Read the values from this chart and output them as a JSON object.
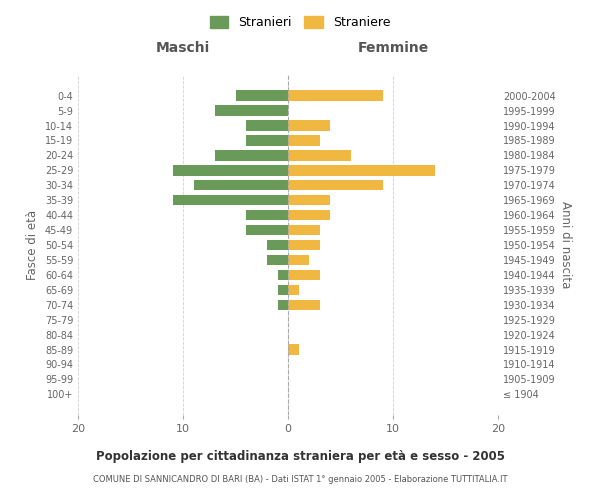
{
  "age_groups": [
    "100+",
    "95-99",
    "90-94",
    "85-89",
    "80-84",
    "75-79",
    "70-74",
    "65-69",
    "60-64",
    "55-59",
    "50-54",
    "45-49",
    "40-44",
    "35-39",
    "30-34",
    "25-29",
    "20-24",
    "15-19",
    "10-14",
    "5-9",
    "0-4"
  ],
  "birth_years": [
    "≤ 1904",
    "1905-1909",
    "1910-1914",
    "1915-1919",
    "1920-1924",
    "1925-1929",
    "1930-1934",
    "1935-1939",
    "1940-1944",
    "1945-1949",
    "1950-1954",
    "1955-1959",
    "1960-1964",
    "1965-1969",
    "1970-1974",
    "1975-1979",
    "1980-1984",
    "1985-1989",
    "1990-1994",
    "1995-1999",
    "2000-2004"
  ],
  "maschi": [
    0,
    0,
    0,
    0,
    0,
    0,
    1,
    1,
    1,
    2,
    2,
    4,
    4,
    11,
    9,
    11,
    7,
    4,
    4,
    7,
    5
  ],
  "femmine": [
    0,
    0,
    0,
    1,
    0,
    0,
    3,
    1,
    3,
    2,
    3,
    3,
    4,
    4,
    9,
    14,
    6,
    3,
    4,
    0,
    9
  ],
  "color_maschi": "#6a9a5a",
  "color_femmine": "#f0b840",
  "title": "Popolazione per cittadinanza straniera per età e sesso - 2005",
  "subtitle": "COMUNE DI SANNICANDRO DI BARI (BA) - Dati ISTAT 1° gennaio 2005 - Elaborazione TUTTITALIA.IT",
  "legend_maschi": "Stranieri",
  "legend_femmine": "Straniere",
  "xlabel_left": "Maschi",
  "xlabel_right": "Femmine",
  "ylabel_left": "Fasce di età",
  "ylabel_right": "Anni di nascita",
  "xlim": 20,
  "background_color": "#ffffff",
  "grid_color": "#cccccc"
}
